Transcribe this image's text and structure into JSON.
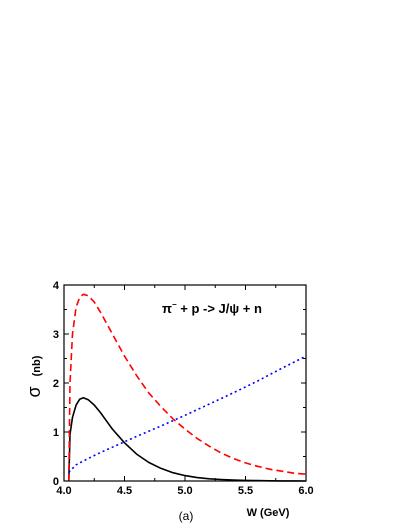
{
  "chart_data": {
    "type": "line",
    "title": "",
    "annotation": {
      "parts": [
        "π",
        "−",
        " + p -> J/ψ  + n"
      ]
    },
    "xlabel": "W (GeV)",
    "ylabel_symbol": "σ",
    "ylabel_unit": "(nb)",
    "panel_label": "(a)",
    "xlim": [
      4.0,
      6.0
    ],
    "ylim": [
      0,
      4
    ],
    "xticks": [
      "4.0",
      "4.5",
      "5.0",
      "5.5",
      "6.0"
    ],
    "yticks": [
      "0",
      "1",
      "2",
      "3",
      "4"
    ],
    "grid": false,
    "series": [
      {
        "color": "#000000",
        "style": "solid",
        "x": [
          4.04,
          4.05,
          4.07,
          4.1,
          4.13,
          4.16,
          4.2,
          4.25,
          4.3,
          4.35,
          4.4,
          4.5,
          4.6,
          4.7,
          4.8,
          4.9,
          5.0,
          5.1,
          5.2,
          5.3,
          5.4,
          5.5,
          5.6,
          5.7,
          5.8,
          5.9,
          6.0
        ],
        "y": [
          0.0,
          0.95,
          1.3,
          1.55,
          1.67,
          1.7,
          1.66,
          1.55,
          1.4,
          1.23,
          1.06,
          0.78,
          0.55,
          0.38,
          0.26,
          0.17,
          0.11,
          0.07,
          0.045,
          0.03,
          0.02,
          0.013,
          0.008,
          0.005,
          0.003,
          0.002,
          0.001
        ]
      },
      {
        "color": "#ff0000",
        "style": "dashed",
        "x": [
          4.04,
          4.05,
          4.07,
          4.1,
          4.13,
          4.16,
          4.2,
          4.25,
          4.3,
          4.4,
          4.5,
          4.6,
          4.7,
          4.8,
          4.9,
          5.0,
          5.1,
          5.2,
          5.3,
          5.4,
          5.5,
          5.6,
          5.7,
          5.8,
          5.9,
          6.0
        ],
        "y": [
          0.0,
          2.0,
          3.0,
          3.55,
          3.75,
          3.81,
          3.78,
          3.65,
          3.45,
          3.0,
          2.55,
          2.15,
          1.8,
          1.52,
          1.27,
          1.06,
          0.87,
          0.71,
          0.57,
          0.46,
          0.37,
          0.3,
          0.24,
          0.2,
          0.16,
          0.14
        ]
      },
      {
        "color": "#0000ff",
        "style": "dotted",
        "x": [
          4.04,
          4.1,
          4.2,
          4.3,
          4.4,
          4.5,
          4.6,
          4.8,
          5.0,
          5.2,
          5.4,
          5.6,
          5.8,
          6.0
        ],
        "y": [
          0.18,
          0.33,
          0.46,
          0.58,
          0.69,
          0.8,
          0.91,
          1.12,
          1.34,
          1.57,
          1.8,
          2.04,
          2.3,
          2.55
        ]
      }
    ]
  }
}
